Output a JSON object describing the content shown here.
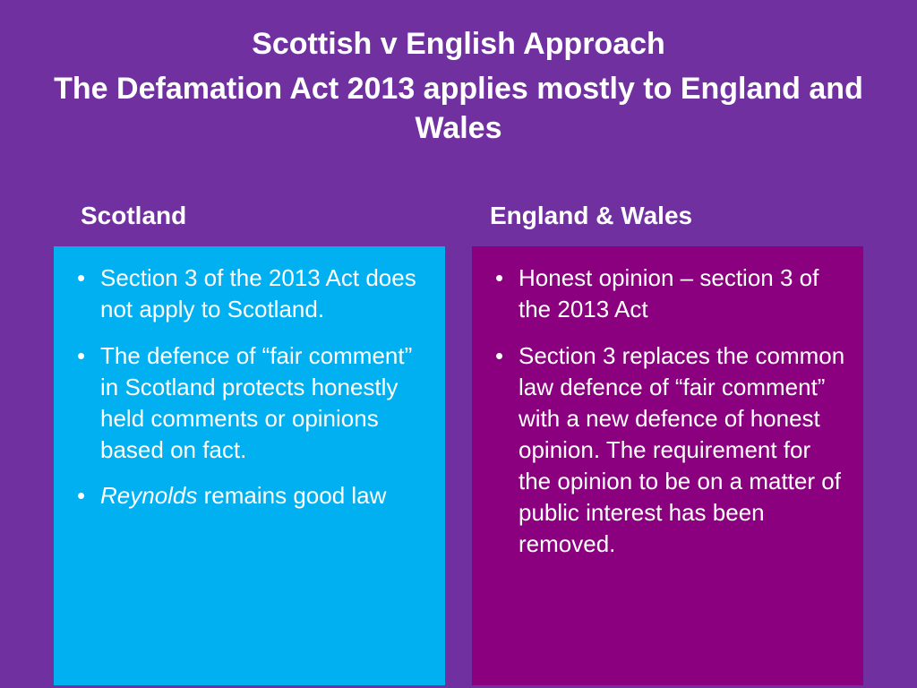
{
  "background_color": "#7030a0",
  "title": {
    "line1": "Scottish v English Approach",
    "line2": "The Defamation Act 2013 applies mostly to England and Wales",
    "color": "#ffffff",
    "fontsize": 34
  },
  "columns": {
    "left": {
      "header": "Scotland",
      "header_color": "#ffffff",
      "box_color": "#00b0f0",
      "text_color": "#ffffff",
      "bullets": [
        "Section 3 of the 2013 Act does not apply to Scotland.",
        "The defence of “fair comment” in Scotland protects honestly held comments or opinions based on fact."
      ],
      "bullet3_italic": "Reynolds",
      "bullet3_rest": " remains good law"
    },
    "right": {
      "header": "England & Wales",
      "header_color": "#ffffff",
      "box_color": "#8a007e",
      "text_color": "#ffffff",
      "bullets": [
        "Honest opinion – section 3 of the 2013 Act",
        "Section 3 replaces the common law defence of “fair comment” with a new defence of honest opinion. The requirement for the opinion to be on a matter of public interest has been removed."
      ]
    }
  },
  "typography": {
    "header_fontsize": 28,
    "body_fontsize": 26
  }
}
